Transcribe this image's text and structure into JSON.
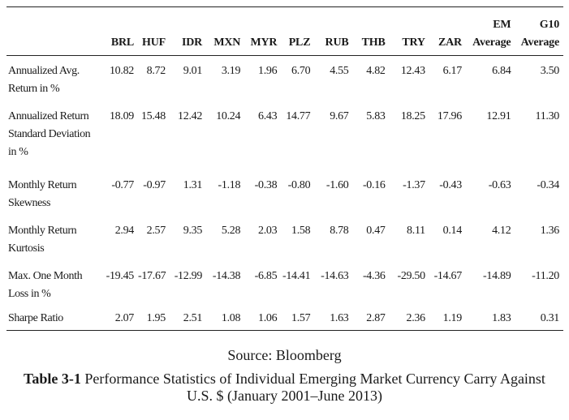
{
  "table": {
    "columns": [
      "",
      "BRL",
      "HUF",
      "IDR",
      "MXN",
      "MYR",
      "PLZ",
      "RUB",
      "THB",
      "TRY",
      "ZAR",
      "EM Average",
      "G10 Average"
    ],
    "rows": [
      {
        "label": "Annualized Avg. Return in %",
        "values": [
          "10.82",
          "8.72",
          "9.01",
          "3.19",
          "1.96",
          "6.70",
          "4.55",
          "4.82",
          "12.43",
          "6.17",
          "6.84",
          "3.50"
        ]
      },
      {
        "label": "Annualized Return Standard Deviation in %",
        "values": [
          "18.09",
          "15.48",
          "12.42",
          "10.24",
          "6.43",
          "14.77",
          "9.67",
          "5.83",
          "18.25",
          "17.96",
          "12.91",
          "11.30"
        ]
      },
      {
        "label": "Monthly Return Skewness",
        "values": [
          "-0.77",
          "-0.97",
          "1.31",
          "-1.18",
          "-0.38",
          "-0.80",
          "-1.60",
          "-0.16",
          "-1.37",
          "-0.43",
          "-0.63",
          "-0.34"
        ]
      },
      {
        "label": "Monthly Return Kurtosis",
        "values": [
          "2.94",
          "2.57",
          "9.35",
          "5.28",
          "2.03",
          "1.58",
          "8.78",
          "0.47",
          "8.11",
          "0.14",
          "4.12",
          "1.36"
        ]
      },
      {
        "label": "Max. One Month Loss in %",
        "values": [
          "-19.45",
          "-17.67",
          "-12.99",
          "-14.38",
          "-6.85",
          "-14.41",
          "-14.63",
          "-4.36",
          "-29.50",
          "-14.67",
          "-14.89",
          "-11.20"
        ]
      },
      {
        "label": "Sharpe Ratio",
        "values": [
          "2.07",
          "1.95",
          "2.51",
          "1.08",
          "1.06",
          "1.57",
          "1.63",
          "2.87",
          "2.36",
          "1.19",
          "1.83",
          "0.31"
        ]
      }
    ]
  },
  "source": "Source: Bloomberg",
  "caption": {
    "number": "Table 3-1",
    "text": " Performance Statistics of Individual Emerging Market Currency Carry Against U.S. $ (January 2001–June 2013)"
  }
}
